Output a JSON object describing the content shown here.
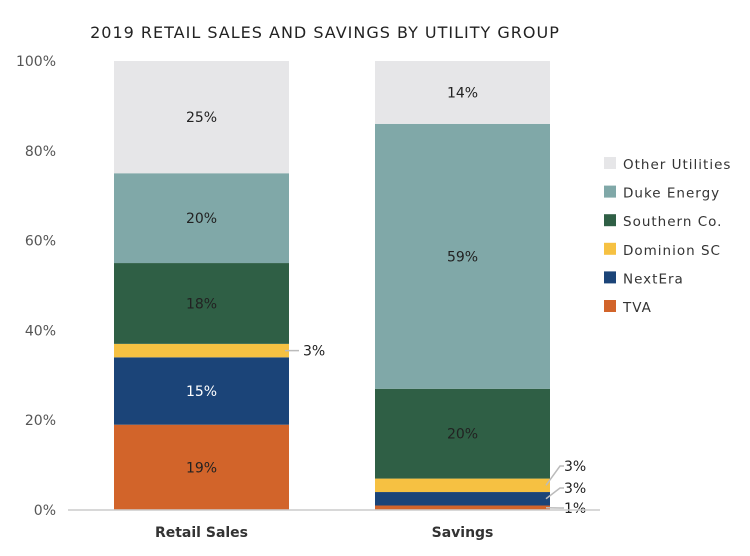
{
  "chart_data": {
    "type": "bar",
    "stacked": true,
    "title": "2019 RETAIL SALES AND SAVINGS BY UTILITY GROUP",
    "categories": [
      "Retail Sales",
      "Savings"
    ],
    "ylim": [
      0,
      100
    ],
    "yticks": [
      "0%",
      "20%",
      "40%",
      "60%",
      "80%",
      "100%"
    ],
    "ytick_values": [
      0,
      20,
      40,
      60,
      80,
      100
    ],
    "grid": false,
    "legend_position": "right",
    "series": [
      {
        "name": "TVA",
        "color": "#D2642A",
        "values": [
          19,
          1
        ],
        "labels": [
          "19%",
          "1%"
        ]
      },
      {
        "name": "NextEra",
        "color": "#1B4478",
        "values": [
          15,
          3
        ],
        "labels": [
          "15%",
          "3%"
        ]
      },
      {
        "name": "Dominion SC",
        "color": "#F6C142",
        "values": [
          3,
          3
        ],
        "labels": [
          "3%",
          "3%"
        ]
      },
      {
        "name": "Southern Co.",
        "color": "#2F5F45",
        "values": [
          18,
          20
        ],
        "labels": [
          "18%",
          "20%"
        ]
      },
      {
        "name": "Duke Energy",
        "color": "#80A8A8",
        "values": [
          20,
          59
        ],
        "labels": [
          "20%",
          "59%"
        ]
      },
      {
        "name": "Other Utilities",
        "color": "#E6E6E8",
        "values": [
          25,
          14
        ],
        "labels": [
          "25%",
          "14%"
        ]
      }
    ]
  }
}
